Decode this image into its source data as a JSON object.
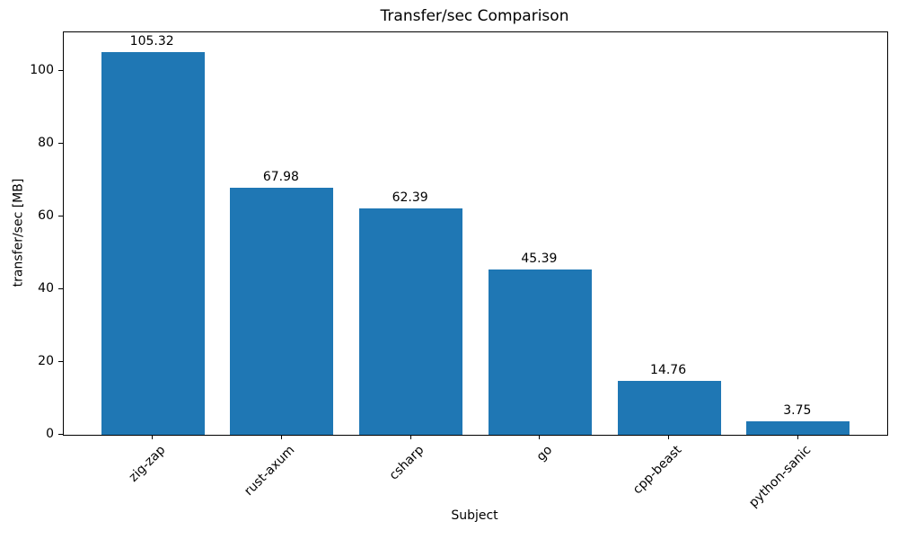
{
  "chart_data": {
    "type": "bar",
    "title": "Transfer/sec Comparison",
    "xlabel": "Subject",
    "ylabel": "transfer/sec [MB]",
    "categories": [
      "zig-zap",
      "rust-axum",
      "csharp",
      "go",
      "cpp-beast",
      "python-sanic"
    ],
    "values": [
      105.32,
      67.98,
      62.39,
      45.39,
      14.76,
      3.75
    ],
    "bar_labels": [
      "105.32",
      "67.98",
      "62.39",
      "45.39",
      "14.76",
      "3.75"
    ],
    "yticks": [
      0,
      20,
      40,
      60,
      80,
      100
    ],
    "ylim": [
      0,
      110.7
    ],
    "bar_color": "#1f77b4",
    "grid": false,
    "legend": null,
    "background_color": "#ffffff",
    "spine_color": "#000000"
  }
}
